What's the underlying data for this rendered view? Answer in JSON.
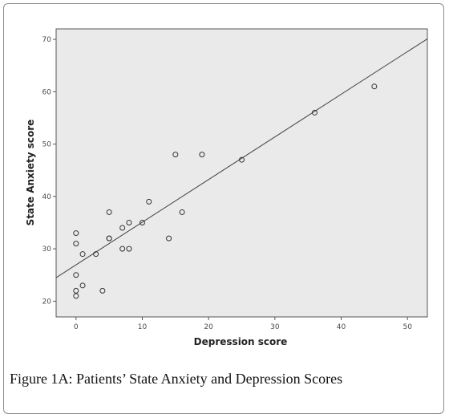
{
  "caption": "Figure 1A: Patients’ State Anxiety and Depression Scores",
  "colors": {
    "plot_background": "#eaeaea",
    "marker": "#333333",
    "fit_line": "#444444",
    "axis": "#555555"
  },
  "chart_data": {
    "type": "scatter",
    "title": "",
    "xlabel": "Depression score",
    "ylabel": "State Anxiety score",
    "xlim": [
      -3,
      53
    ],
    "ylim": [
      17,
      72
    ],
    "xticks": [
      0,
      10,
      20,
      30,
      40,
      50
    ],
    "yticks": [
      20,
      30,
      40,
      50,
      60,
      70
    ],
    "grid": false,
    "legend": "none",
    "marker": "open-circle",
    "points": [
      {
        "x": 0,
        "y": 21
      },
      {
        "x": 0,
        "y": 22
      },
      {
        "x": 0,
        "y": 25
      },
      {
        "x": 0,
        "y": 31
      },
      {
        "x": 0,
        "y": 33
      },
      {
        "x": 1,
        "y": 23
      },
      {
        "x": 1,
        "y": 29
      },
      {
        "x": 3,
        "y": 29
      },
      {
        "x": 4,
        "y": 22
      },
      {
        "x": 5,
        "y": 32
      },
      {
        "x": 5,
        "y": 32
      },
      {
        "x": 5,
        "y": 37
      },
      {
        "x": 7,
        "y": 30
      },
      {
        "x": 7,
        "y": 34
      },
      {
        "x": 8,
        "y": 30
      },
      {
        "x": 8,
        "y": 35
      },
      {
        "x": 10,
        "y": 35
      },
      {
        "x": 11,
        "y": 39
      },
      {
        "x": 14,
        "y": 32
      },
      {
        "x": 15,
        "y": 48
      },
      {
        "x": 16,
        "y": 37
      },
      {
        "x": 19,
        "y": 48
      },
      {
        "x": 25,
        "y": 47
      },
      {
        "x": 36,
        "y": 56
      },
      {
        "x": 45,
        "y": 61
      }
    ],
    "fit_line": {
      "x": [
        -3,
        53
      ],
      "y": [
        24.5,
        70.1
      ]
    }
  }
}
